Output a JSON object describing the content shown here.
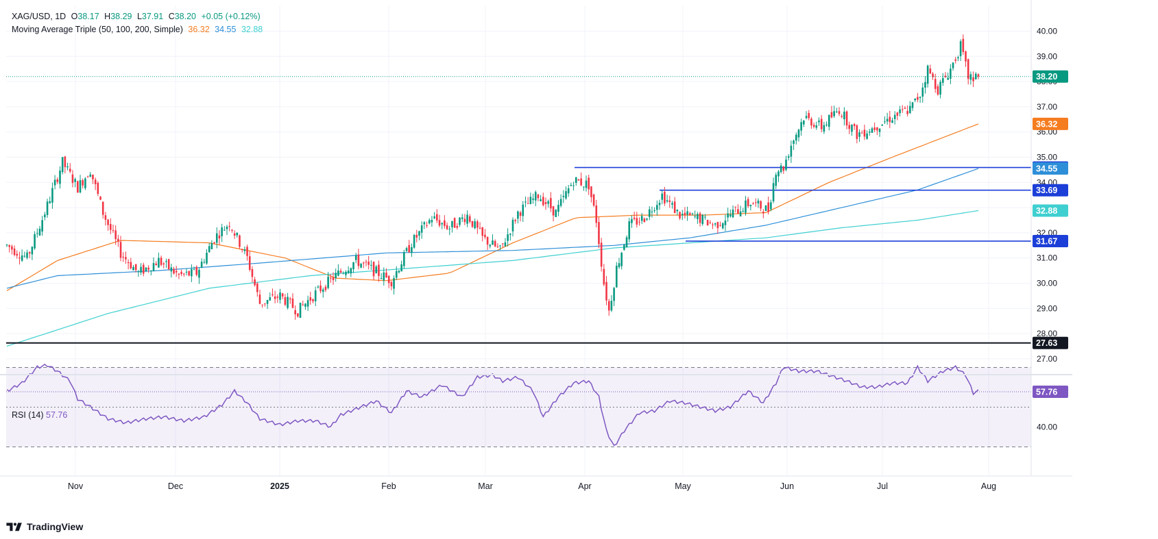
{
  "header": {
    "symbol": "XAG/USD, 1D",
    "open_label": "O",
    "open": "38.17",
    "high_label": "H",
    "high": "38.29",
    "low_label": "L",
    "low": "37.91",
    "close_label": "C",
    "close": "38.20",
    "change": "+0.05 (+0.12%)"
  },
  "ma_header": {
    "label": "Moving Average Triple (50, 100, 200, Simple)",
    "ma50": "36.32",
    "ma100": "34.55",
    "ma200": "32.88"
  },
  "rsi_header": {
    "label": "RSI (14)",
    "value": "57.76"
  },
  "brand": {
    "name": "TradingView"
  },
  "colors": {
    "up": "#089981",
    "down": "#f23645",
    "ma50": "#f57c1f",
    "ma100": "#2e8fd8",
    "ma200": "#3fcfd0",
    "hline": "#1c3fd8",
    "support": "#131722",
    "rsi": "#7e57c2"
  },
  "chart_data": [
    {
      "type": "candlestick",
      "title": "XAG/USD, 1D",
      "x_tick_labels": [
        "Nov",
        "Dec",
        "2025",
        "Feb",
        "Mar",
        "Apr",
        "May",
        "Jun",
        "Jul",
        "Aug"
      ],
      "y_tick_labels": [
        "27.00",
        "28.00",
        "29.00",
        "30.00",
        "31.00",
        "32.00",
        "33.00",
        "34.00",
        "35.00",
        "36.00",
        "37.00",
        "38.00",
        "39.00",
        "40.00"
      ],
      "ylim": [
        26.5,
        40.4
      ],
      "grid": true,
      "price_path": [
        [
          0,
          31.5
        ],
        [
          8,
          31.0
        ],
        [
          15,
          32.8
        ],
        [
          22,
          34.8
        ],
        [
          28,
          33.8
        ],
        [
          33,
          34.5
        ],
        [
          38,
          32.8
        ],
        [
          45,
          31.2
        ],
        [
          52,
          30.4
        ],
        [
          60,
          30.9
        ],
        [
          68,
          30.3
        ],
        [
          75,
          30.4
        ],
        [
          82,
          31.8
        ],
        [
          88,
          32.4
        ],
        [
          95,
          31.0
        ],
        [
          100,
          29.2
        ],
        [
          108,
          29.5
        ],
        [
          115,
          28.9
        ],
        [
          122,
          29.6
        ],
        [
          130,
          30.3
        ],
        [
          138,
          30.9
        ],
        [
          145,
          30.5
        ],
        [
          152,
          30.1
        ],
        [
          160,
          31.6
        ],
        [
          168,
          32.6
        ],
        [
          175,
          32.2
        ],
        [
          182,
          32.7
        ],
        [
          188,
          31.8
        ],
        [
          195,
          31.3
        ],
        [
          202,
          32.8
        ],
        [
          210,
          33.5
        ],
        [
          217,
          32.8
        ],
        [
          224,
          34.1
        ],
        [
          230,
          33.9
        ],
        [
          233,
          32.5
        ],
        [
          236,
          30.0
        ],
        [
          238,
          28.9
        ],
        [
          241,
          30.6
        ],
        [
          246,
          32.3
        ],
        [
          252,
          32.6
        ],
        [
          259,
          33.5
        ],
        [
          266,
          32.7
        ],
        [
          273,
          32.6
        ],
        [
          280,
          32.3
        ],
        [
          287,
          32.8
        ],
        [
          294,
          33.2
        ],
        [
          301,
          32.9
        ],
        [
          304,
          34.5
        ],
        [
          307,
          34.6
        ],
        [
          310,
          35.5
        ],
        [
          315,
          36.6
        ],
        [
          322,
          36.2
        ],
        [
          329,
          36.9
        ],
        [
          336,
          35.9
        ],
        [
          343,
          36.2
        ],
        [
          350,
          36.6
        ],
        [
          357,
          36.9
        ],
        [
          361,
          37.5
        ],
        [
          364,
          38.5
        ],
        [
          368,
          37.7
        ],
        [
          373,
          38.5
        ],
        [
          377,
          39.4
        ],
        [
          380,
          38.2
        ],
        [
          382,
          38.17
        ],
        [
          384,
          38.2
        ]
      ],
      "moving_averages": [
        {
          "name": "50",
          "value": "36.32",
          "path": [
            [
              0,
              29.7
            ],
            [
              20,
              30.9
            ],
            [
              45,
              31.7
            ],
            [
              80,
              31.6
            ],
            [
              110,
              31.0
            ],
            [
              130,
              30.2
            ],
            [
              150,
              30.1
            ],
            [
              175,
              30.4
            ],
            [
              200,
              31.6
            ],
            [
              225,
              32.6
            ],
            [
              250,
              32.7
            ],
            [
              275,
              32.7
            ],
            [
              300,
              32.8
            ],
            [
              325,
              34.0
            ],
            [
              350,
              35.0
            ],
            [
              384,
              36.32
            ]
          ]
        },
        {
          "name": "100",
          "value": "34.55",
          "path": [
            [
              0,
              29.8
            ],
            [
              20,
              30.3
            ],
            [
              60,
              30.5
            ],
            [
              100,
              30.8
            ],
            [
              150,
              31.2
            ],
            [
              200,
              31.3
            ],
            [
              240,
              31.5
            ],
            [
              270,
              31.8
            ],
            [
              300,
              32.3
            ],
            [
              330,
              33.0
            ],
            [
              360,
              33.7
            ],
            [
              384,
              34.55
            ]
          ]
        },
        {
          "name": "200",
          "value": "32.88",
          "path": [
            [
              0,
              27.5
            ],
            [
              40,
              28.8
            ],
            [
              80,
              29.8
            ],
            [
              120,
              30.3
            ],
            [
              160,
              30.6
            ],
            [
              200,
              30.9
            ],
            [
              240,
              31.4
            ],
            [
              270,
              31.6
            ],
            [
              300,
              31.8
            ],
            [
              330,
              32.2
            ],
            [
              360,
              32.5
            ],
            [
              384,
              32.88
            ]
          ]
        }
      ],
      "horizontal_levels": [
        {
          "value": "34.59",
          "from": "Mar"
        },
        {
          "value": "33.69",
          "from": "Apr"
        },
        {
          "value": "31.67",
          "from": "May"
        },
        {
          "value": "27.63",
          "from": "Oct"
        }
      ],
      "last_price": "38.20"
    },
    {
      "type": "line",
      "title": "RSI (14)",
      "y_tick_labels": [
        "40.00"
      ],
      "ylim": [
        23,
        82
      ],
      "bands": [
        30,
        50,
        70
      ],
      "last_value": "57.76",
      "rsi_path": [
        [
          0,
          58
        ],
        [
          6,
          62
        ],
        [
          12,
          70
        ],
        [
          16,
          71
        ],
        [
          20,
          68
        ],
        [
          25,
          63
        ],
        [
          28,
          54
        ],
        [
          33,
          50
        ],
        [
          40,
          44
        ],
        [
          47,
          42
        ],
        [
          55,
          44
        ],
        [
          62,
          45
        ],
        [
          70,
          43
        ],
        [
          78,
          45
        ],
        [
          85,
          51
        ],
        [
          90,
          58
        ],
        [
          95,
          52
        ],
        [
          100,
          44
        ],
        [
          108,
          41
        ],
        [
          115,
          43
        ],
        [
          122,
          43
        ],
        [
          128,
          40
        ],
        [
          132,
          46
        ],
        [
          140,
          50
        ],
        [
          146,
          53
        ],
        [
          152,
          47
        ],
        [
          158,
          58
        ],
        [
          164,
          55
        ],
        [
          172,
          61
        ],
        [
          180,
          55
        ],
        [
          186,
          65
        ],
        [
          192,
          66
        ],
        [
          196,
          63
        ],
        [
          202,
          65
        ],
        [
          208,
          58
        ],
        [
          212,
          45
        ],
        [
          218,
          55
        ],
        [
          224,
          62
        ],
        [
          230,
          63
        ],
        [
          234,
          55
        ],
        [
          237,
          38
        ],
        [
          240,
          30
        ],
        [
          244,
          38
        ],
        [
          250,
          47
        ],
        [
          256,
          48
        ],
        [
          262,
          53
        ],
        [
          268,
          52
        ],
        [
          274,
          50
        ],
        [
          280,
          48
        ],
        [
          286,
          50
        ],
        [
          293,
          58
        ],
        [
          299,
          52
        ],
        [
          304,
          62
        ],
        [
          307,
          70
        ],
        [
          313,
          68
        ],
        [
          320,
          68
        ],
        [
          325,
          66
        ],
        [
          332,
          63
        ],
        [
          338,
          60
        ],
        [
          344,
          60
        ],
        [
          350,
          62
        ],
        [
          356,
          62
        ],
        [
          360,
          70
        ],
        [
          364,
          63
        ],
        [
          370,
          68
        ],
        [
          375,
          70
        ],
        [
          379,
          66
        ],
        [
          382,
          57
        ],
        [
          384,
          58
        ]
      ]
    }
  ]
}
